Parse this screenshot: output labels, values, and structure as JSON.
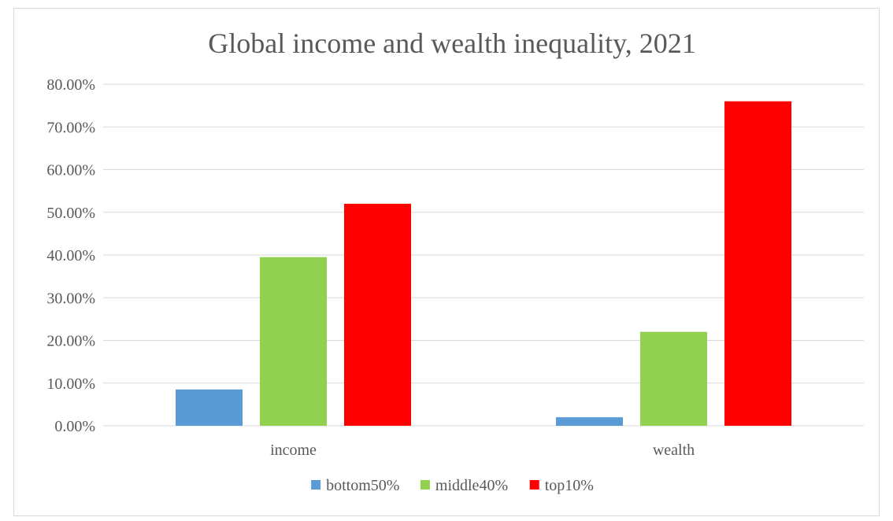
{
  "chart_data": {
    "type": "bar",
    "title": "Global income and wealth inequality, 2021",
    "xlabel": "",
    "ylabel": "",
    "categories": [
      "income",
      "wealth"
    ],
    "series": [
      {
        "name": "bottom50%",
        "color": "#5b9bd5",
        "values": [
          0.085,
          0.02
        ]
      },
      {
        "name": "middle40%",
        "color": "#92d050",
        "values": [
          0.395,
          0.22
        ]
      },
      {
        "name": "top10%",
        "color": "#ff0000",
        "values": [
          0.52,
          0.76
        ]
      }
    ],
    "ylim": [
      0,
      0.8
    ],
    "yticks": [
      0,
      0.1,
      0.2,
      0.3,
      0.4,
      0.5,
      0.6,
      0.7,
      0.8
    ],
    "ytick_labels": [
      "0.00%",
      "10.00%",
      "20.00%",
      "30.00%",
      "40.00%",
      "50.00%",
      "60.00%",
      "70.00%",
      "80.00%"
    ],
    "grid": true,
    "legend_position": "bottom"
  }
}
